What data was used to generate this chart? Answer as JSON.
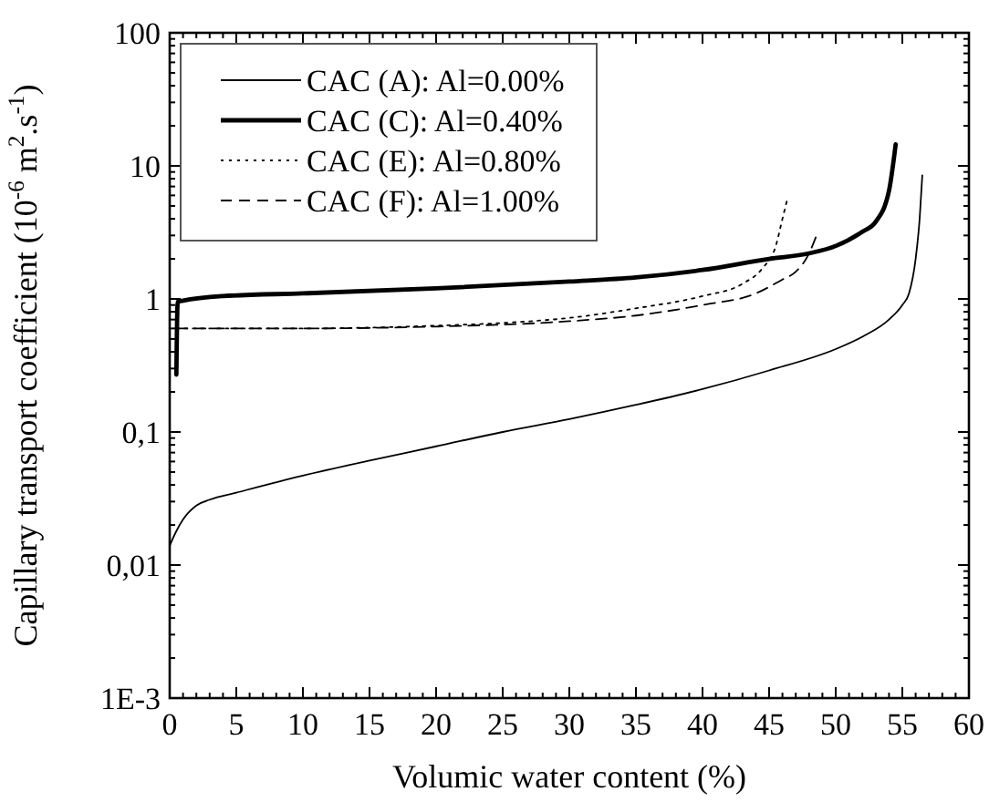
{
  "chart_data": {
    "type": "line",
    "xlabel": "Volumic water content (%)",
    "ylabel": "Capillary transport coefficient (10$^{-6}$ m$^{2}$.s$^{-1}$)",
    "log": "y",
    "xlim": [
      0,
      60
    ],
    "xticks": [
      0,
      5,
      10,
      15,
      20,
      25,
      30,
      35,
      40,
      45,
      50,
      55,
      60
    ],
    "ylim": [
      0.001,
      100
    ],
    "yticks": [
      {
        "value": 0.001,
        "label": "1E-3"
      },
      {
        "value": 0.01,
        "label": "0,01"
      },
      {
        "value": 0.1,
        "label": "0,1"
      },
      1,
      10,
      100
    ],
    "legend": "top left",
    "grid": false,
    "series": [
      {
        "name": "CAC (A): Al=0.00%",
        "color": "#000000",
        "line_style": "solid",
        "x": [
          0,
          0.5,
          1,
          2,
          3,
          5,
          10,
          15,
          20,
          25,
          30,
          35,
          40,
          45,
          50,
          52,
          54,
          55,
          55.5,
          56,
          56.3,
          56.5
        ],
        "values": [
          0.014,
          0.018,
          0.022,
          0.028,
          0.031,
          0.035,
          0.047,
          0.061,
          0.078,
          0.1,
          0.125,
          0.16,
          0.21,
          0.29,
          0.42,
          0.52,
          0.7,
          0.9,
          1.1,
          2,
          4,
          8.5
        ]
      },
      {
        "name": "CAC (C): Al=0.40%",
        "color": "#000000",
        "line_style": "solid",
        "x": [
          0.5,
          0.6,
          1,
          4,
          10,
          20,
          30,
          35,
          40,
          45,
          48,
          50,
          52,
          53,
          54,
          54.5
        ],
        "values": [
          0.27,
          0.95,
          0.97,
          1.05,
          1.1,
          1.2,
          1.35,
          1.45,
          1.65,
          2.0,
          2.2,
          2.5,
          3.2,
          3.8,
          6.5,
          14.5
        ]
      },
      {
        "name": "CAC (E): Al=0.80%",
        "color": "#000000",
        "line_style": "dotted",
        "x": [
          0.5,
          10,
          20,
          25,
          30,
          35,
          40,
          43,
          44.5,
          45.5,
          46,
          46.4
        ],
        "values": [
          0.6,
          0.6,
          0.63,
          0.66,
          0.72,
          0.85,
          1.05,
          1.3,
          1.7,
          2.5,
          4,
          5.8
        ]
      },
      {
        "name": "CAC (F): Al=1.00%",
        "color": "#000000",
        "line_style": "dashed",
        "x": [
          0.5,
          10,
          20,
          30,
          35,
          40,
          44,
          46,
          47,
          48,
          48.5
        ],
        "values": [
          0.6,
          0.6,
          0.62,
          0.68,
          0.75,
          0.9,
          1.1,
          1.4,
          1.6,
          2.2,
          2.9
        ]
      }
    ]
  }
}
